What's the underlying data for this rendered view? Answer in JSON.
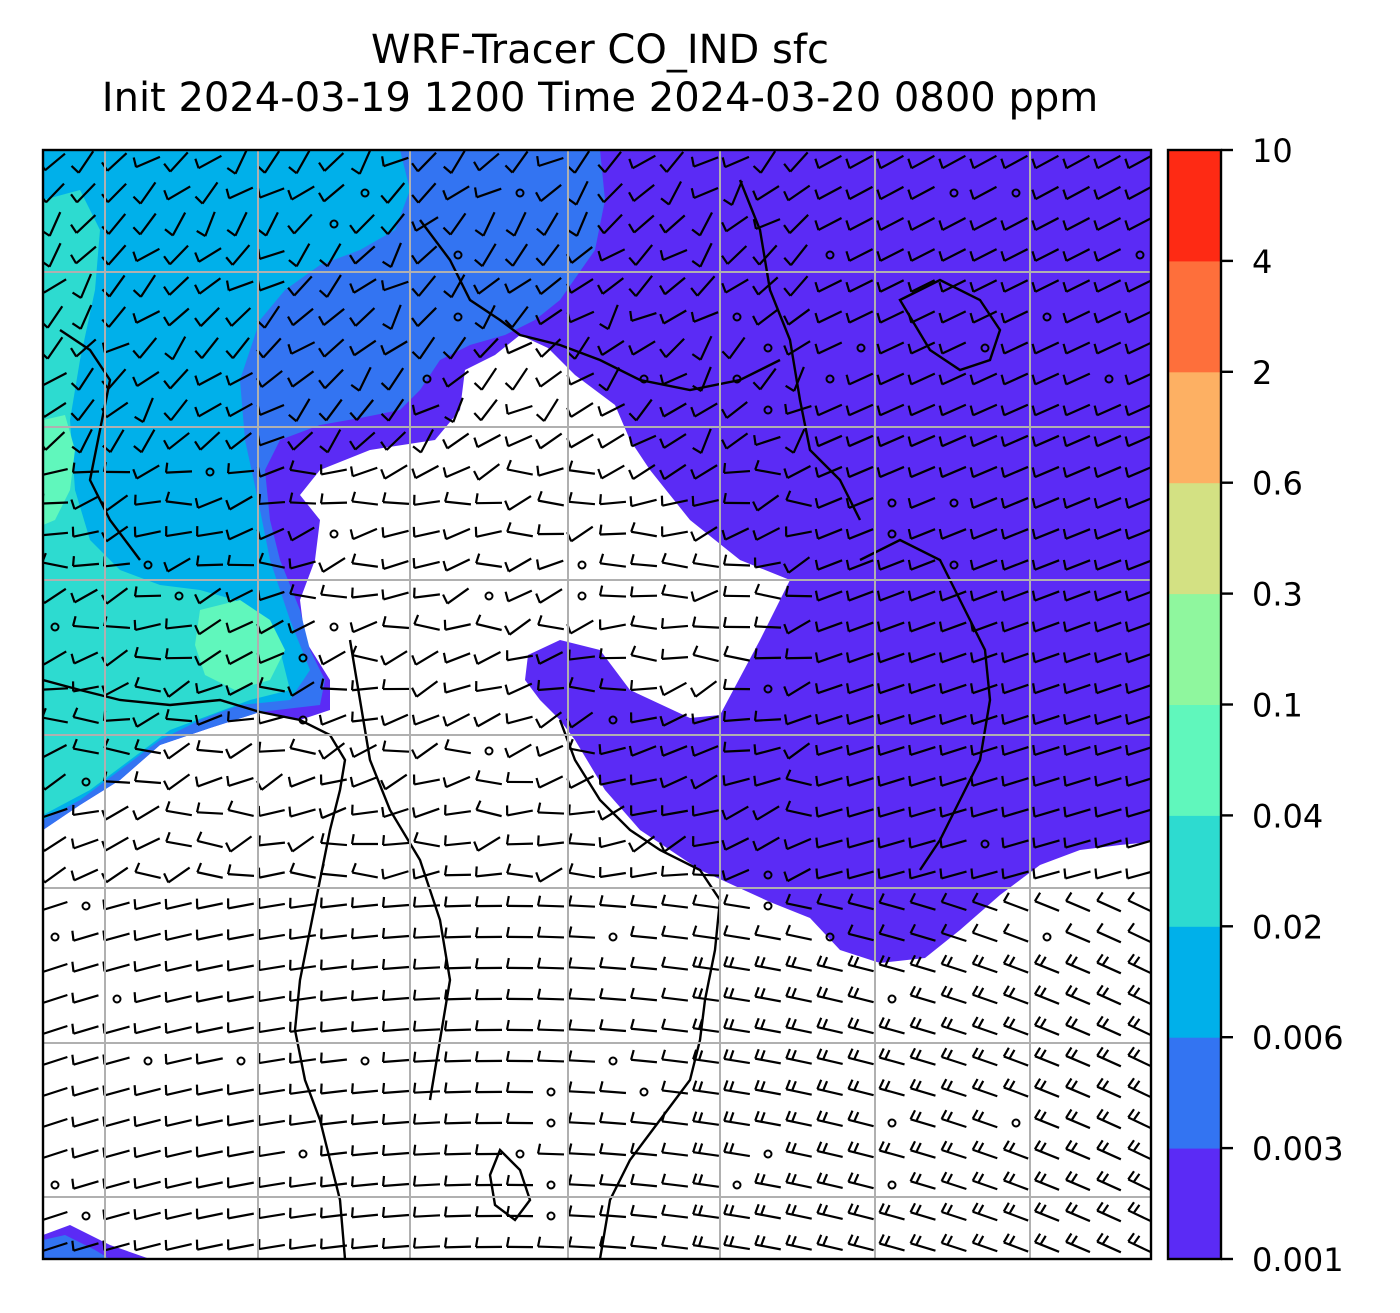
{
  "title": {
    "line1": "WRF-Tracer CO_IND sfc",
    "line2": "Init 2024-03-19 1200 Time 2024-03-20 0800 ppm"
  },
  "colorbar": {
    "ticks": [
      "10",
      "4",
      "2",
      "0.6",
      "0.3",
      "0.1",
      "0.04",
      "0.02",
      "0.006",
      "0.003",
      "0.001"
    ],
    "colors": [
      "#5b2bf5",
      "#3374f2",
      "#00b0ea",
      "#2ddbd0",
      "#60f7bc",
      "#8ff79e",
      "#d3e183",
      "#fdb063",
      "#fe6f3b",
      "#fe2a14"
    ]
  },
  "field_colors": {
    "very_low": "#5b2bf5",
    "low": "#3374f2",
    "mid_low": "#00b0ea",
    "mid": "#2ddbd0",
    "mid_high": "#60f7bc"
  },
  "overlays": {
    "wind_barbs": true,
    "coastlines": true,
    "gridlines": true,
    "gridline_color": "#b0b0b0"
  }
}
